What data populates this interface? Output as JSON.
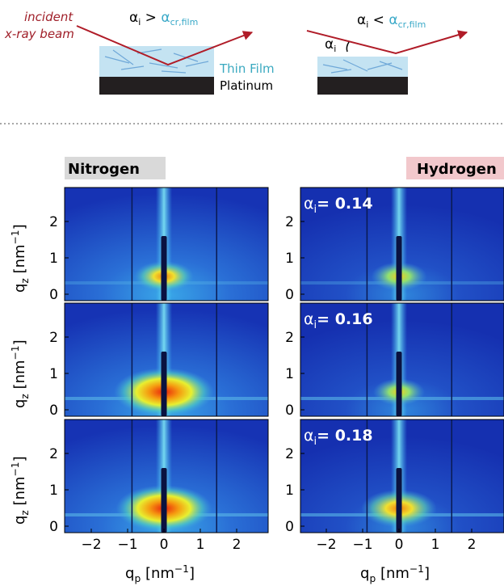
{
  "schematic": {
    "beam_label": [
      "incident",
      "x-ray beam"
    ],
    "left_condition": {
      "a": "α",
      "a_sub": "i",
      "op": " > ",
      "b": "α",
      "b_sub": "cr,film"
    },
    "right_condition": {
      "a": "α",
      "a_sub": "i",
      "op": " < ",
      "b": "α",
      "b_sub": "cr,film"
    },
    "angle_label": {
      "a": "α",
      "a_sub": "i"
    },
    "film_label": "Thin Film",
    "substrate_label": "Platinum"
  },
  "columns": [
    "Nitrogen",
    "Hydrogen"
  ],
  "panels": [
    {
      "a": "α",
      "a_sub": "i",
      "value": "= 0.14"
    },
    {
      "a": "α",
      "a_sub": "i",
      "value": "= 0.16"
    },
    {
      "a": "α",
      "a_sub": "i",
      "value": "= 0.18"
    }
  ],
  "axes": {
    "x_label": {
      "q": "q",
      "sub": "p",
      "unit": " [nm",
      "exp": "−1",
      "close": "]"
    },
    "y_label": {
      "q": "q",
      "sub": "z",
      "unit": " [nm",
      "exp": "−1",
      "close": "]"
    },
    "x_ticks": [
      "−2",
      "−1",
      "0",
      "1",
      "2"
    ],
    "y_ticks": [
      "0",
      "1",
      "2"
    ]
  }
}
